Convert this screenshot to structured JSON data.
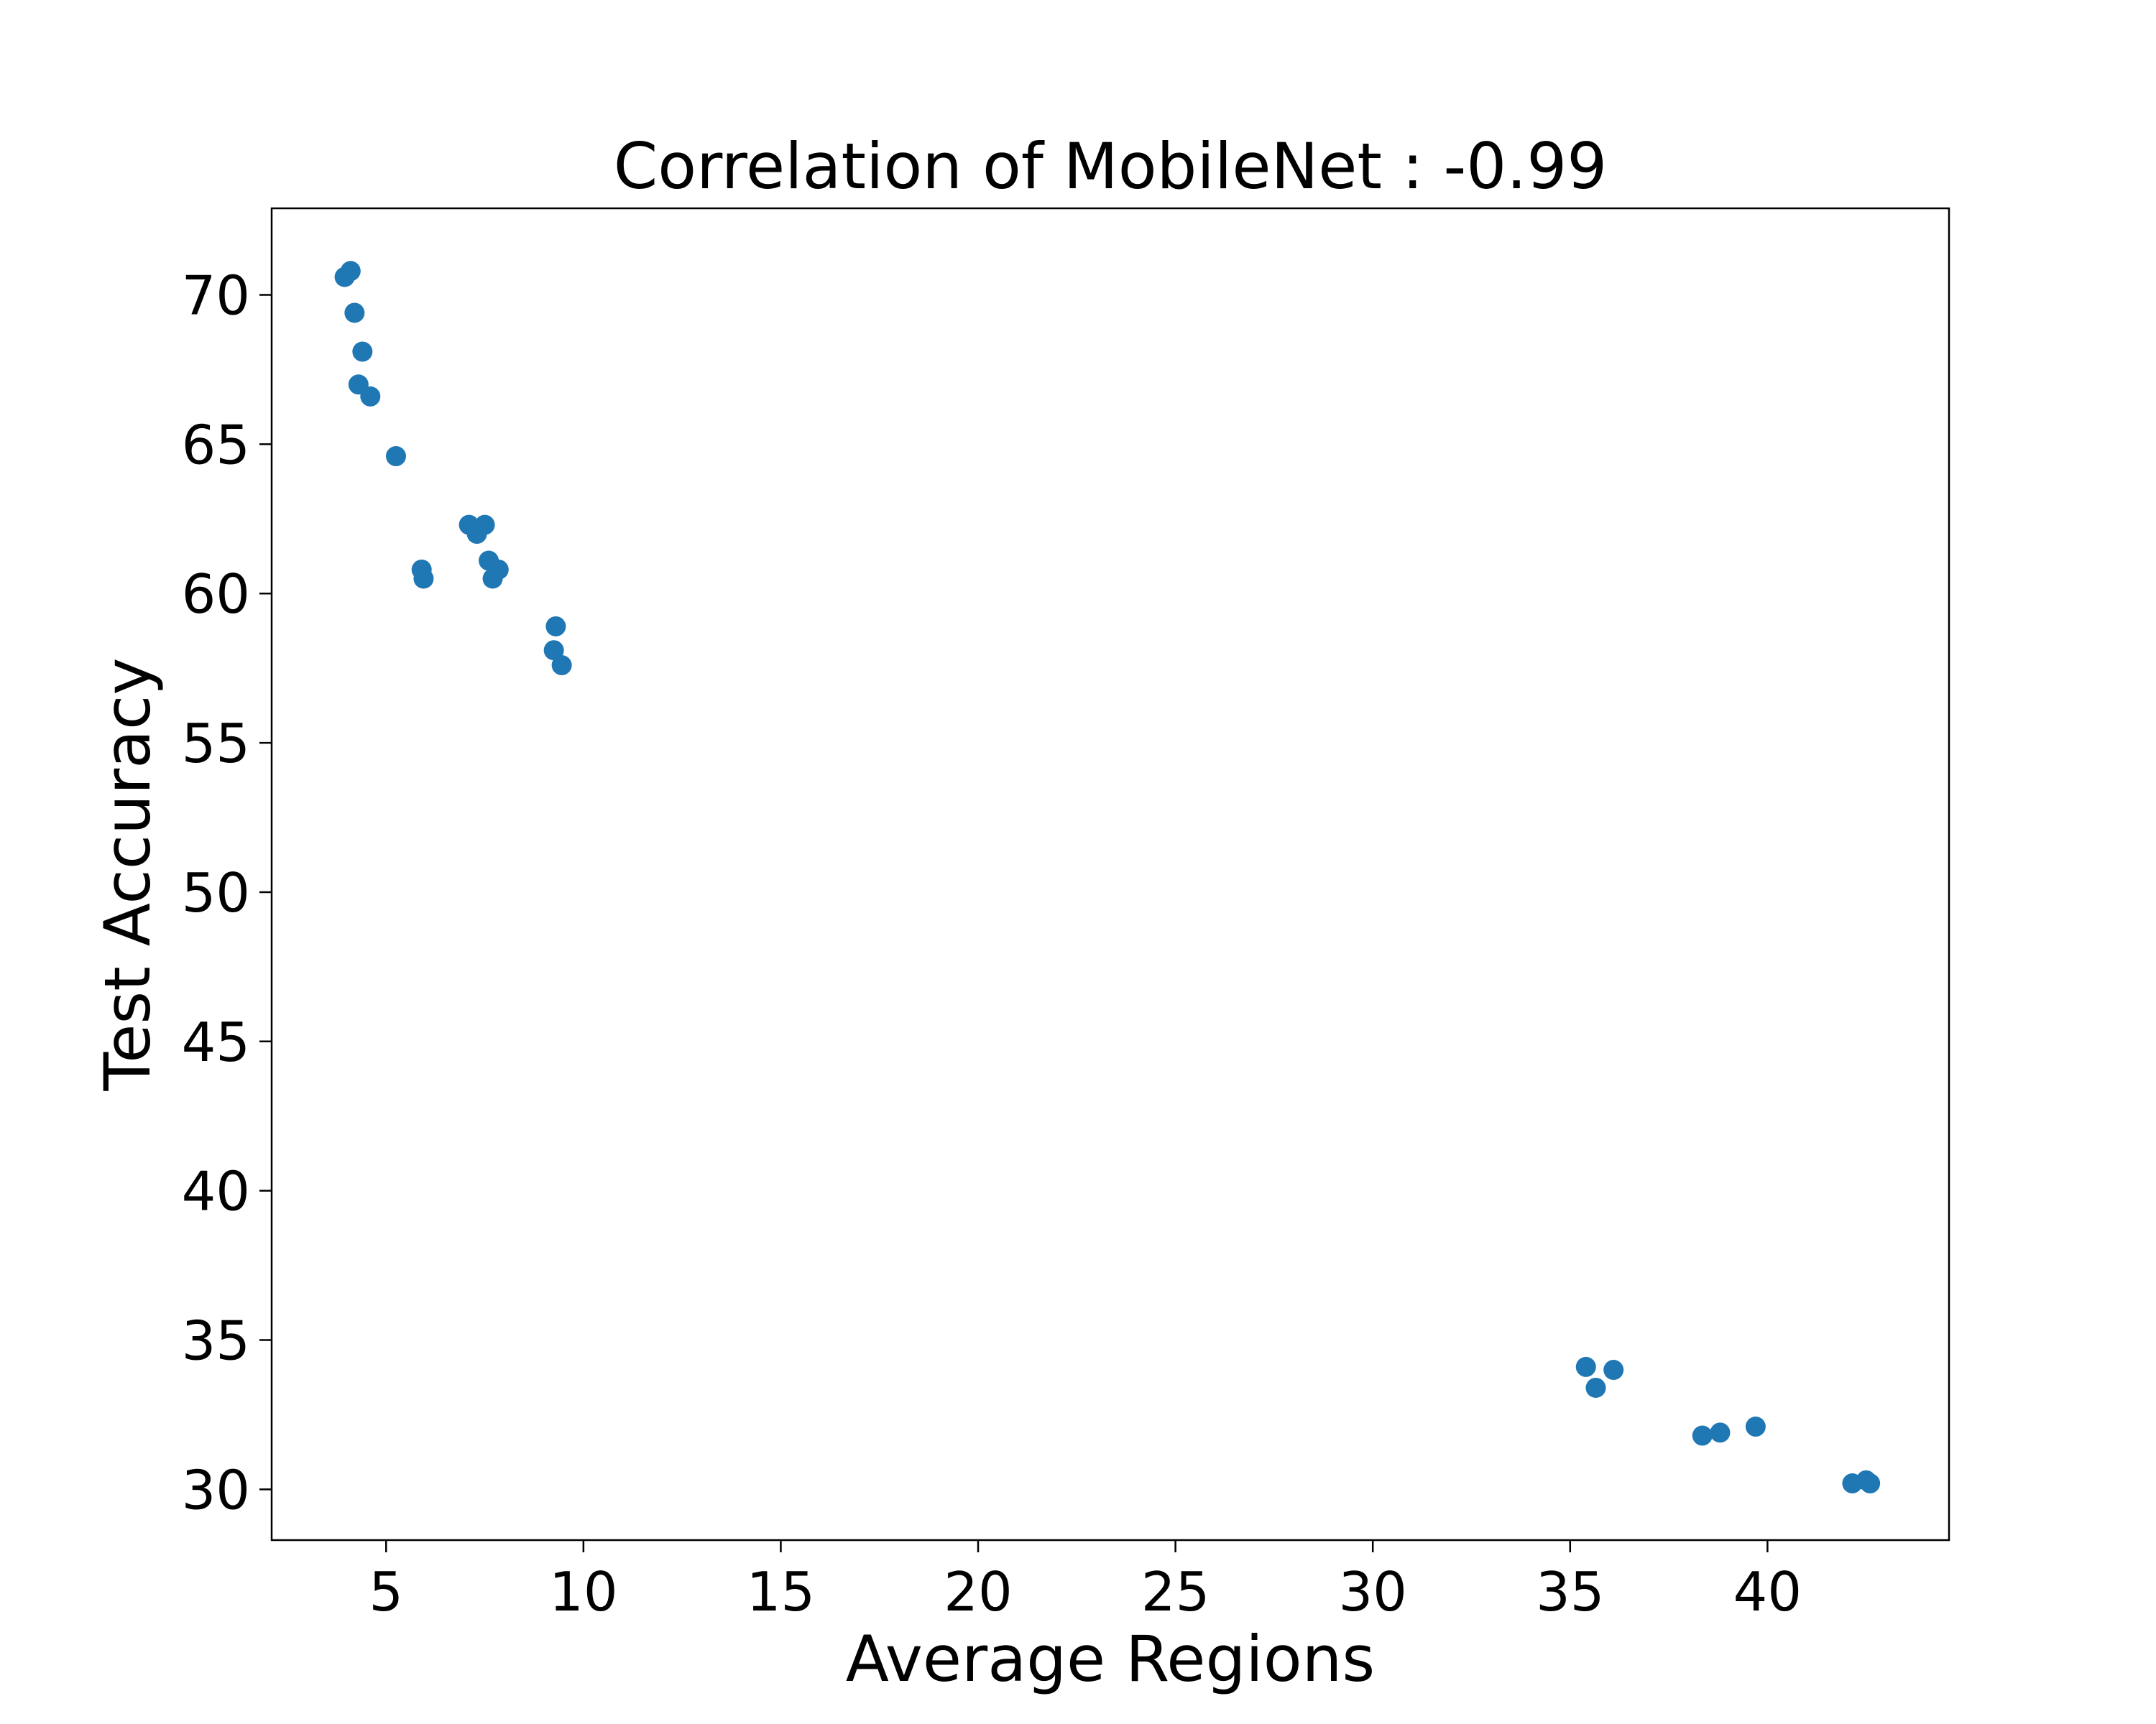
{
  "chart_data": {
    "type": "scatter",
    "title": "Correlation of MobileNet : -0.99",
    "xlabel": "Average Regions",
    "ylabel": "Test Accuracy",
    "xlim": [
      2.1,
      44.6
    ],
    "ylim": [
      28.3,
      72.9
    ],
    "xticks": [
      5,
      10,
      15,
      20,
      25,
      30,
      35,
      40
    ],
    "yticks": [
      30,
      35,
      40,
      45,
      50,
      55,
      60,
      65,
      70
    ],
    "grid": false,
    "marker_color": "#1f77b4",
    "series": [
      {
        "x": [
          3.95,
          4.1,
          4.2,
          4.4,
          4.3,
          4.6,
          5.25,
          5.9,
          5.95,
          7.1,
          7.3,
          7.5,
          7.6,
          7.85,
          7.7,
          9.3,
          9.25,
          9.45,
          35.4,
          35.65,
          36.1,
          38.35,
          38.8,
          39.7,
          42.15,
          42.5,
          42.6
        ],
        "y": [
          70.6,
          70.8,
          69.4,
          68.1,
          67.0,
          66.6,
          64.6,
          60.8,
          60.5,
          62.3,
          62.0,
          62.3,
          61.1,
          60.8,
          60.5,
          58.9,
          58.1,
          57.6,
          34.1,
          33.4,
          34.0,
          31.8,
          31.9,
          32.1,
          30.2,
          30.3,
          30.2
        ]
      }
    ]
  }
}
